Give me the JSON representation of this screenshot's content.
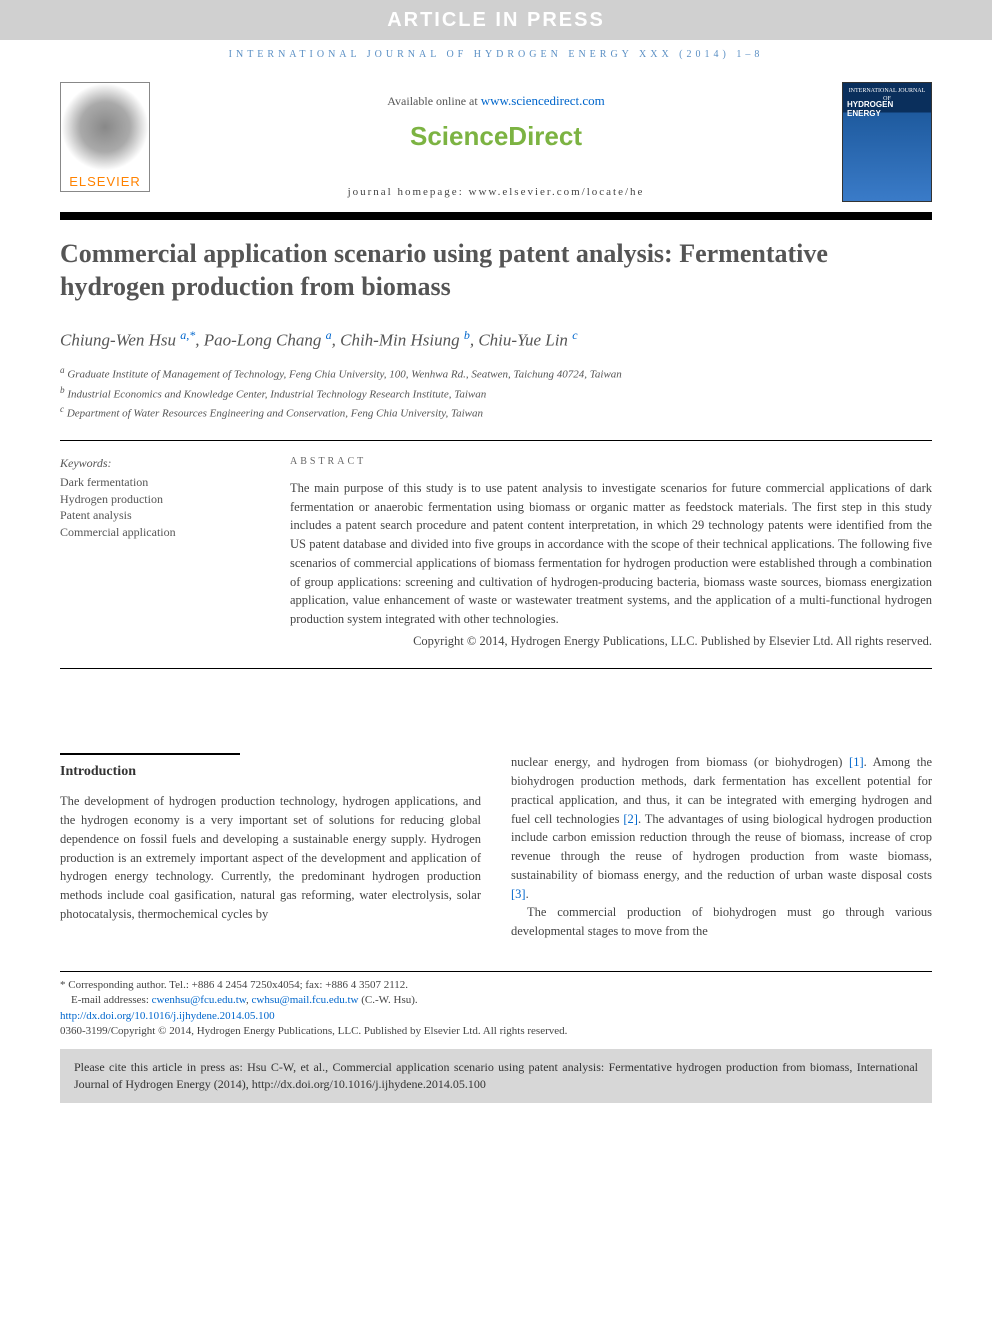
{
  "banner": "ARTICLE IN PRESS",
  "journal_ref": "INTERNATIONAL JOURNAL OF HYDROGEN ENERGY XXX (2014) 1–8",
  "header": {
    "available": "Available online at ",
    "available_link": "www.sciencedirect.com",
    "sd_logo": "ScienceDirect",
    "homepage_label": "journal homepage: ",
    "homepage_url": "www.elsevier.com/locate/he",
    "elsevier": "ELSEVIER",
    "cover_small": "INTERNATIONAL JOURNAL OF",
    "cover_main1": "HYDROGEN",
    "cover_main2": "ENERGY"
  },
  "title": "Commercial application scenario using patent analysis: Fermentative hydrogen production from biomass",
  "authors": [
    {
      "name": "Chiung-Wen Hsu",
      "aff": "a,*"
    },
    {
      "name": "Pao-Long Chang",
      "aff": "a"
    },
    {
      "name": "Chih-Min Hsiung",
      "aff": "b"
    },
    {
      "name": "Chiu-Yue Lin",
      "aff": "c"
    }
  ],
  "affiliations": {
    "a": "Graduate Institute of Management of Technology, Feng Chia University, 100, Wenhwa Rd., Seatwen, Taichung 40724, Taiwan",
    "b": "Industrial Economics and Knowledge Center, Industrial Technology Research Institute, Taiwan",
    "c": "Department of Water Resources Engineering and Conservation, Feng Chia University, Taiwan"
  },
  "keywords": {
    "label": "Keywords:",
    "items": [
      "Dark fermentation",
      "Hydrogen production",
      "Patent analysis",
      "Commercial application"
    ]
  },
  "abstract": {
    "label": "ABSTRACT",
    "text": "The main purpose of this study is to use patent analysis to investigate scenarios for future commercial applications of dark fermentation or anaerobic fermentation using biomass or organic matter as feedstock materials. The first step in this study includes a patent search procedure and patent content interpretation, in which 29 technology patents were identified from the US patent database and divided into five groups in accordance with the scope of their technical applications. The following five scenarios of commercial applications of biomass fermentation for hydrogen production were established through a combination of group applications: screening and cultivation of hydrogen-producing bacteria, biomass waste sources, biomass energization application, value enhancement of waste or wastewater treatment systems, and the application of a multi-functional hydrogen production system integrated with other technologies.",
    "copyright": "Copyright © 2014, Hydrogen Energy Publications, LLC. Published by Elsevier Ltd. All rights reserved."
  },
  "intro": {
    "heading": "Introduction",
    "col1": "The development of hydrogen production technology, hydrogen applications, and the hydrogen economy is a very important set of solutions for reducing global dependence on fossil fuels and developing a sustainable energy supply. Hydrogen production is an extremely important aspect of the development and application of hydrogen energy technology. Currently, the predominant hydrogen production methods include coal gasification, natural gas reforming, water electrolysis, solar photocatalysis, thermochemical cycles by",
    "col2a": "nuclear energy, and hydrogen from biomass (or biohydrogen) ",
    "ref1": "[1]",
    "col2b": ". Among the biohydrogen production methods, dark fermentation has excellent potential for practical application, and thus, it can be integrated with emerging hydrogen and fuel cell technologies ",
    "ref2": "[2]",
    "col2c": ". The advantages of using biological hydrogen production include carbon emission reduction through the reuse of biomass, increase of crop revenue through the reuse of hydrogen production from waste biomass, sustainability of biomass energy, and the reduction of urban waste disposal costs ",
    "ref3": "[3]",
    "col2d": ".",
    "col2e": "The commercial production of biohydrogen must go through various developmental stages to move from the"
  },
  "footnotes": {
    "corr": "* Corresponding author. Tel.: +886 4 2454 7250x4054; fax: +886 4 3507 2112.",
    "email_label": "E-mail addresses: ",
    "email1": "cwenhsu@fcu.edu.tw",
    "email_sep": ", ",
    "email2": "cwhsu@mail.fcu.edu.tw",
    "email_tail": " (C.-W. Hsu).",
    "doi": "http://dx.doi.org/10.1016/j.ijhydene.2014.05.100",
    "issn": "0360-3199/Copyright © 2014, Hydrogen Energy Publications, LLC. Published by Elsevier Ltd. All rights reserved."
  },
  "cite_box": "Please cite this article in press as: Hsu C-W, et al., Commercial application scenario using patent analysis: Fermentative hydrogen production from biomass, International Journal of Hydrogen Energy (2014), http://dx.doi.org/10.1016/j.ijhydene.2014.05.100"
}
